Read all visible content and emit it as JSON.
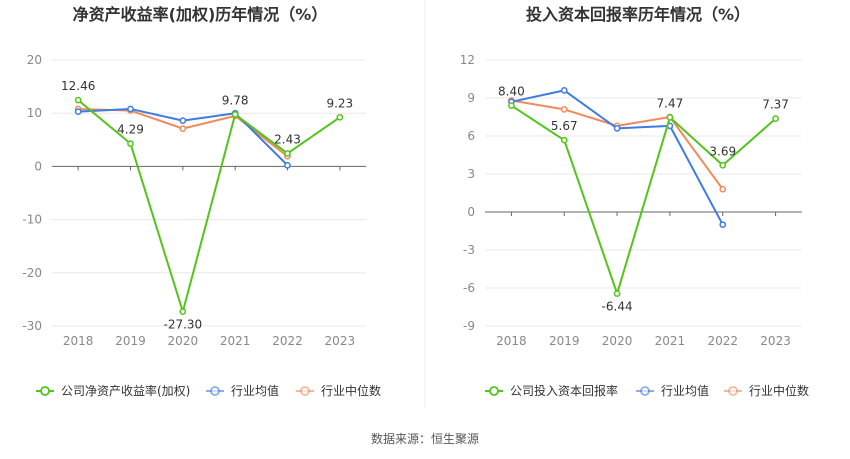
{
  "chart_data": [
    {
      "type": "line",
      "title": "净资产收益率(加权)历年情况（%）",
      "categories": [
        "2018",
        "2019",
        "2020",
        "2021",
        "2022",
        "2023"
      ],
      "ylim": [
        -30,
        20
      ],
      "yticks": [
        "20",
        "10",
        "0",
        "-10",
        "-20",
        "-30"
      ],
      "ytick_values": [
        20,
        10,
        0,
        -10,
        -20,
        -30
      ],
      "grid": true,
      "legend_position": "bottom",
      "series": [
        {
          "name": "公司净资产收益率(加权)",
          "color": "#52c41a",
          "values": [
            12.46,
            4.29,
            -27.3,
            9.78,
            2.43,
            9.23
          ],
          "labels": [
            "12.46",
            "4.29",
            "-27.30",
            "9.78",
            "2.43",
            "9.23"
          ]
        },
        {
          "name": "行业均值",
          "color": "#3f7be0",
          "values": [
            10.3,
            10.8,
            8.6,
            10.0,
            0.2,
            null
          ]
        },
        {
          "name": "行业中位数",
          "color": "#f08a5d",
          "values": [
            10.8,
            10.5,
            7.1,
            9.5,
            1.9,
            null
          ]
        }
      ]
    },
    {
      "type": "line",
      "title": "投入资本回报率历年情况（%）",
      "categories": [
        "2018",
        "2019",
        "2020",
        "2021",
        "2022",
        "2023"
      ],
      "ylim": [
        -9,
        12
      ],
      "yticks": [
        "12",
        "9",
        "6",
        "3",
        "0",
        "-3",
        "-6",
        "-9"
      ],
      "ytick_values": [
        12,
        9,
        6,
        3,
        0,
        -3,
        -6,
        -9
      ],
      "grid": true,
      "legend_position": "bottom",
      "series": [
        {
          "name": "公司投入资本回报率",
          "color": "#52c41a",
          "values": [
            8.4,
            5.67,
            -6.44,
            7.47,
            3.69,
            7.37
          ],
          "labels": [
            "8.40",
            "5.67",
            "-6.44",
            "7.47",
            "3.69",
            "7.37"
          ]
        },
        {
          "name": "行业均值",
          "color": "#3f7be0",
          "values": [
            8.7,
            9.6,
            6.6,
            6.8,
            -1.0,
            null
          ]
        },
        {
          "name": "行业中位数",
          "color": "#f08a5d",
          "values": [
            8.8,
            8.1,
            6.8,
            7.5,
            1.8,
            null
          ]
        }
      ]
    }
  ],
  "footer": {
    "source": "数据来源：恒生聚源"
  }
}
